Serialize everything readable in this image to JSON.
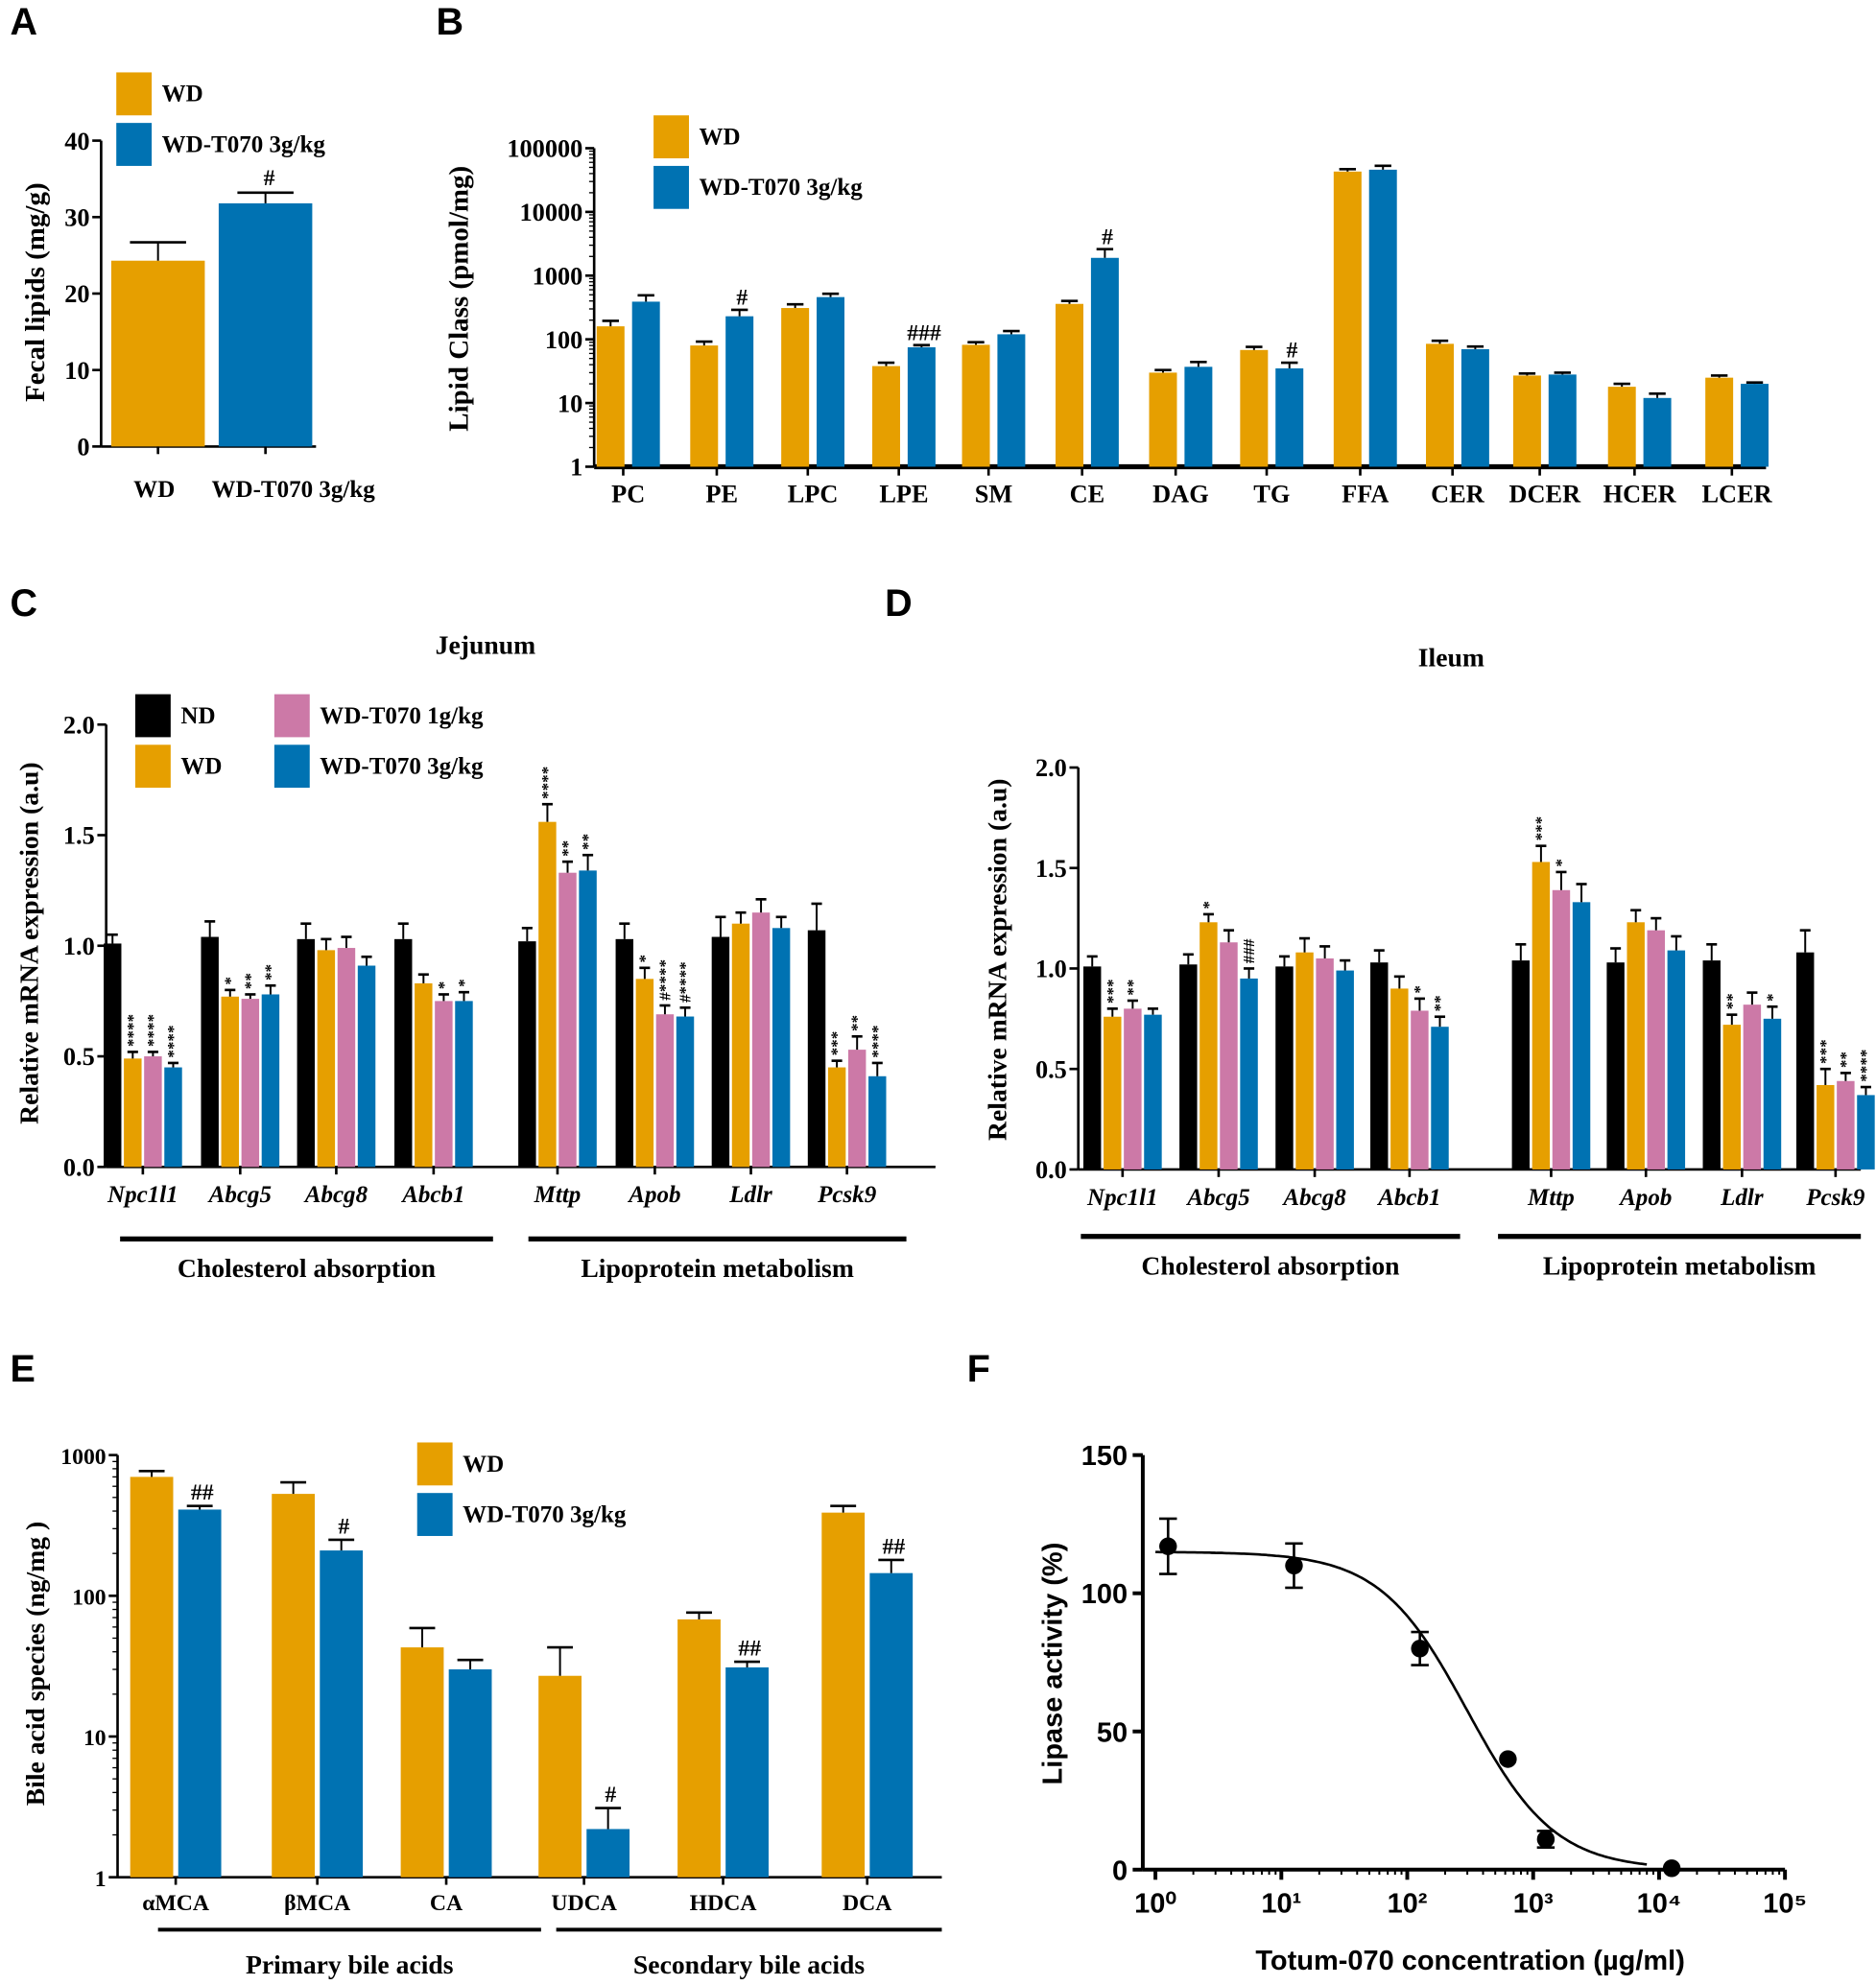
{
  "colors": {
    "ND": "#000000",
    "WD": "#E69F00",
    "T070_1g": "#CC79A7",
    "T070_3g": "#0072B2"
  },
  "chart_data": [
    {
      "panel": "A",
      "type": "bar",
      "ylabel": "Fecal lipids (mg/g)",
      "ylim": [
        0,
        40
      ],
      "yticks": [
        "0",
        "10",
        "20",
        "30",
        "40"
      ],
      "categories": [
        "WD",
        "WD-T070 3g/kg"
      ],
      "values": [
        24.3,
        31.8
      ],
      "errors": [
        2.4,
        1.4
      ],
      "annotations": [
        "",
        "#"
      ],
      "legend": [
        "WD",
        "WD-T070 3g/kg"
      ],
      "legend_placement": "top-left"
    },
    {
      "panel": "B",
      "type": "bar",
      "yscale": "log",
      "ylabel": "Lipid Class (pmol/mg)",
      "ylim": [
        1,
        100000
      ],
      "yticks": [
        "1",
        "10",
        "100",
        "1000",
        "10000",
        "100000"
      ],
      "categories": [
        "PC",
        "PE",
        "LPC",
        "LPE",
        "SM",
        "CE",
        "DAG",
        "TG",
        "FFA",
        "CER",
        "DCER",
        "HCER",
        "LCER"
      ],
      "series": [
        {
          "name": "WD",
          "values": [
            160,
            80,
            310,
            38,
            82,
            360,
            30,
            68,
            43000,
            85,
            27,
            18,
            25
          ],
          "errors": [
            35,
            12,
            45,
            5,
            8,
            40,
            3,
            8,
            4000,
            10,
            2,
            2,
            2
          ],
          "annotations": [
            "",
            "",
            "",
            "",
            "",
            "",
            "",
            "",
            "",
            "",
            "",
            "",
            ""
          ]
        },
        {
          "name": "WD-T070 3g/kg",
          "values": [
            390,
            230,
            460,
            75,
            120,
            1900,
            37,
            35,
            46000,
            70,
            28,
            12,
            20
          ],
          "errors": [
            100,
            60,
            60,
            6,
            15,
            700,
            7,
            8,
            7000,
            7,
            2,
            2,
            1
          ],
          "annotations": [
            "",
            "#",
            "",
            "###",
            "",
            "#",
            "",
            "#",
            "",
            "",
            "",
            "",
            ""
          ]
        }
      ],
      "legend_placement": "top-left"
    },
    {
      "panel": "C",
      "type": "bar",
      "title": "Jejunum",
      "ylabel": "Relative mRNA expression (a.u)",
      "ylim": [
        0,
        2.0
      ],
      "yticks": [
        "0.0",
        "0.5",
        "1.0",
        "1.5",
        "2.0"
      ],
      "categories": [
        "Npc1l1",
        "Abcg5",
        "Abcg8",
        "Abcb1",
        "Mttp",
        "Apob",
        "Ldlr",
        "Pcsk9"
      ],
      "groups": [
        "Cholesterol absorption",
        "Lipoprotein metabolism"
      ],
      "series": [
        {
          "name": "ND",
          "values": [
            1.01,
            1.04,
            1.03,
            1.03,
            1.02,
            1.03,
            1.04,
            1.07
          ],
          "errors": [
            0.04,
            0.07,
            0.07,
            0.07,
            0.06,
            0.07,
            0.09,
            0.12
          ],
          "annotations": [
            "",
            "",
            "",
            "",
            "",
            "",
            "",
            ""
          ]
        },
        {
          "name": "WD",
          "values": [
            0.49,
            0.77,
            0.98,
            0.83,
            1.56,
            0.85,
            1.1,
            0.45
          ],
          "errors": [
            0.03,
            0.03,
            0.05,
            0.04,
            0.08,
            0.05,
            0.05,
            0.03
          ],
          "annotations": [
            "****",
            "*",
            "",
            "",
            "****",
            "*",
            "",
            "***"
          ]
        },
        {
          "name": "WD-T070 1g/kg",
          "values": [
            0.5,
            0.76,
            0.99,
            0.75,
            1.33,
            0.69,
            1.15,
            0.53
          ],
          "errors": [
            0.02,
            0.02,
            0.05,
            0.03,
            0.05,
            0.04,
            0.06,
            0.06
          ],
          "annotations": [
            "****",
            "**",
            "",
            "*",
            "**",
            "#****",
            "",
            "**"
          ]
        },
        {
          "name": "WD-T070 3g/kg",
          "values": [
            0.45,
            0.78,
            0.91,
            0.75,
            1.34,
            0.68,
            1.08,
            0.41
          ],
          "errors": [
            0.02,
            0.04,
            0.04,
            0.04,
            0.07,
            0.04,
            0.05,
            0.06
          ],
          "annotations": [
            "****",
            "**",
            "",
            "*",
            "**",
            "#****",
            "",
            "****"
          ]
        }
      ],
      "legend_placement": "top-left"
    },
    {
      "panel": "D",
      "type": "bar",
      "title": "Ileum",
      "ylabel": "Relative mRNA expression (a.u)",
      "ylim": [
        0,
        2.0
      ],
      "yticks": [
        "0.0",
        "0.5",
        "1.0",
        "1.5",
        "2.0"
      ],
      "categories": [
        "Npc1l1",
        "Abcg5",
        "Abcg8",
        "Abcb1",
        "Mttp",
        "Apob",
        "Ldlr",
        "Pcsk9"
      ],
      "groups": [
        "Cholesterol absorption",
        "Lipoprotein metabolism"
      ],
      "series": [
        {
          "name": "ND",
          "values": [
            1.01,
            1.02,
            1.01,
            1.03,
            1.04,
            1.03,
            1.04,
            1.08
          ],
          "errors": [
            0.05,
            0.05,
            0.05,
            0.06,
            0.08,
            0.07,
            0.08,
            0.11
          ],
          "annotations": [
            "",
            "",
            "",
            "",
            "",
            "",
            "",
            ""
          ]
        },
        {
          "name": "WD",
          "values": [
            0.76,
            1.23,
            1.08,
            0.9,
            1.53,
            1.23,
            0.72,
            0.42
          ],
          "errors": [
            0.04,
            0.04,
            0.07,
            0.06,
            0.08,
            0.06,
            0.05,
            0.08
          ],
          "annotations": [
            "***",
            "*",
            "",
            "",
            "***",
            "",
            "**",
            "***"
          ]
        },
        {
          "name": "WD-T070 1g/kg",
          "values": [
            0.8,
            1.13,
            1.05,
            0.79,
            1.39,
            1.19,
            0.82,
            0.44
          ],
          "errors": [
            0.04,
            0.06,
            0.06,
            0.06,
            0.09,
            0.06,
            0.06,
            0.04
          ],
          "annotations": [
            "**",
            "",
            "",
            "*",
            "*",
            "",
            "",
            "**"
          ]
        },
        {
          "name": "WD-T070 3g/kg",
          "values": [
            0.77,
            0.95,
            0.99,
            0.71,
            1.33,
            1.09,
            0.75,
            0.37
          ],
          "errors": [
            0.03,
            0.05,
            0.05,
            0.05,
            0.09,
            0.07,
            0.06,
            0.04
          ],
          "annotations": [
            "",
            "###",
            "",
            "**",
            "",
            "",
            "*",
            "****"
          ]
        }
      ]
    },
    {
      "panel": "E",
      "type": "bar",
      "yscale": "log",
      "ylabel": "Bile acid species (ng/mg )",
      "ylim": [
        1,
        1000
      ],
      "yticks": [
        "1",
        "10",
        "100",
        "1000"
      ],
      "categories": [
        "αMCA",
        "βMCA",
        "CA",
        "UDCA",
        "HDCA",
        "DCA"
      ],
      "groups": [
        "Primary bile acids",
        "Secondary bile acids"
      ],
      "series": [
        {
          "name": "WD",
          "values": [
            700,
            530,
            43,
            27,
            68,
            390
          ],
          "errors": [
            70,
            110,
            16,
            16,
            8,
            45
          ],
          "annotations": [
            "",
            "",
            "",
            "",
            "",
            ""
          ]
        },
        {
          "name": "WD-T070 3g/kg",
          "values": [
            410,
            210,
            30,
            2.2,
            31,
            145
          ],
          "errors": [
            25,
            40,
            5,
            0.9,
            3,
            35
          ],
          "annotations": [
            "##",
            "#",
            "",
            "#",
            "##",
            "##"
          ]
        }
      ],
      "legend_placement": "top-center"
    },
    {
      "panel": "F",
      "type": "scatter",
      "xscale": "log",
      "xlabel": "Totum-070 concentration (µg/ml)",
      "ylabel": "Lipase activity (%)",
      "xlim": [
        1,
        100000
      ],
      "ylim": [
        0,
        150
      ],
      "xticks": [
        "10⁰",
        "10¹",
        "10²",
        "10³",
        "10⁴",
        "10⁵"
      ],
      "yticks": [
        "0",
        "50",
        "100",
        "150"
      ],
      "points": [
        {
          "x": 1.26,
          "y": 117,
          "err": 10
        },
        {
          "x": 12.6,
          "y": 110,
          "err": 8
        },
        {
          "x": 126,
          "y": 80,
          "err": 6
        },
        {
          "x": 630,
          "y": 40,
          "err": 0
        },
        {
          "x": 1260,
          "y": 11,
          "err": 3
        },
        {
          "x": 12600,
          "y": 0.5,
          "err": 0
        }
      ],
      "fit": "sigmoidal dose-response curve"
    }
  ]
}
